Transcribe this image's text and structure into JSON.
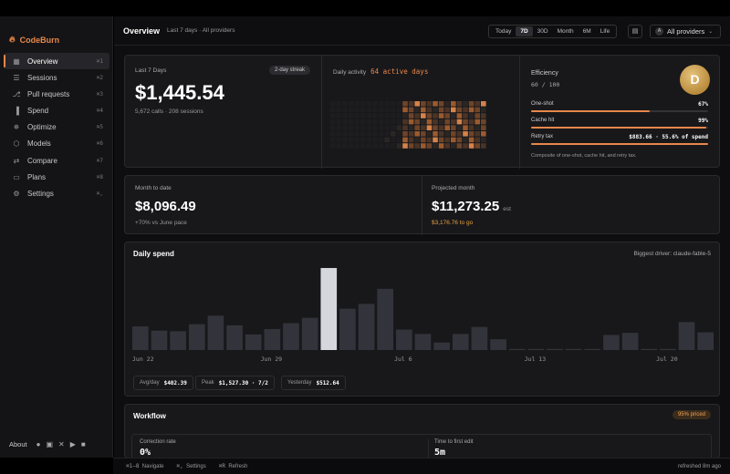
{
  "app": {
    "name": "CodeBurn"
  },
  "sidebar": {
    "items": [
      {
        "label": "Overview",
        "key": "⌘1",
        "icon": "grid-icon",
        "glyph": "▦"
      },
      {
        "label": "Sessions",
        "key": "⌘2",
        "icon": "stack-icon",
        "glyph": "☰"
      },
      {
        "label": "Pull requests",
        "key": "⌘3",
        "icon": "git-pull-request-icon",
        "glyph": "⎇"
      },
      {
        "label": "Spend",
        "key": "⌘4",
        "icon": "bar-chart-icon",
        "glyph": "▐"
      },
      {
        "label": "Optimize",
        "key": "⌘5",
        "icon": "lightbulb-icon",
        "glyph": "✵"
      },
      {
        "label": "Models",
        "key": "⌘6",
        "icon": "cube-icon",
        "glyph": "⬡"
      },
      {
        "label": "Compare",
        "key": "⌘7",
        "icon": "swap-icon",
        "glyph": "⇄"
      },
      {
        "label": "Plans",
        "key": "⌘8",
        "icon": "card-icon",
        "glyph": "▭"
      },
      {
        "label": "Settings",
        "key": "⌘,",
        "icon": "gear-icon",
        "glyph": "⚙"
      }
    ],
    "footer_label": "About"
  },
  "header": {
    "title": "Overview",
    "subtitle": "Last 7 days · All providers",
    "ranges": [
      "Today",
      "7D",
      "30D",
      "Month",
      "6M",
      "Life"
    ],
    "selected_range": "7D",
    "provider_label": "All providers",
    "provider_badge": "A"
  },
  "summary": {
    "label": "Last 7 Days",
    "streak": "2-day streak",
    "amount": "$1,445.54",
    "detail": "5,672 calls · 208 sessions"
  },
  "activity": {
    "label": "Daily activity",
    "highlight": "64 active days"
  },
  "efficiency": {
    "label": "Efficiency",
    "score": "60 / 100",
    "grade": "D",
    "rows": [
      {
        "label": "One-shot",
        "value": "67%",
        "fill": 0.67
      },
      {
        "label": "Cache hit",
        "value": "99%",
        "fill": 0.99
      },
      {
        "label": "Retry tax",
        "value": "$883.66 · 55.6% of spend",
        "fill": 1.0
      }
    ],
    "note": "Composite of one-shot, cache hit, and retry tax."
  },
  "month_to_date": {
    "label": "Month to date",
    "amount": "$8,096.49",
    "detail": "+70% vs June pace"
  },
  "projected": {
    "label": "Projected month",
    "amount": "$11,273.25",
    "suffix": "est",
    "detail": "$3,176.76 to go"
  },
  "daily_spend": {
    "title": "Daily spend",
    "driver": "Biggest driver: claude-fable-5",
    "stats": [
      {
        "label": "Avg/day",
        "value": "$402.39"
      },
      {
        "label": "Peak",
        "value": "$1,527.30 · 7/2"
      },
      {
        "label": "Yesterday",
        "value": "$512.64"
      }
    ]
  },
  "chart_data": {
    "type": "bar",
    "x_tick_labels": [
      "Jun 22",
      "Jun 29",
      "Jul 6",
      "Jul 13",
      "Jul 20"
    ],
    "x_tick_indices": [
      0,
      7,
      14,
      21,
      28
    ],
    "values": [
      440,
      360,
      350,
      480,
      640,
      460,
      290,
      390,
      500,
      600,
      1527,
      770,
      860,
      1140,
      380,
      300,
      140,
      300,
      430,
      200,
      20,
      20,
      20,
      20,
      20,
      280,
      320,
      20,
      20,
      520,
      330
    ],
    "highlight_index": 10,
    "ylim": [
      0,
      1527.3
    ],
    "colors": {
      "bar": "#33343b",
      "highlight": "#d6d7dc"
    }
  },
  "workflow": {
    "title": "Workflow",
    "badge": "95% priced",
    "metrics": [
      {
        "label": "Correction rate",
        "value": "0%"
      },
      {
        "label": "Time to first edit",
        "value": "5m"
      }
    ]
  },
  "statusbar": {
    "nav_keys": "⌘1–8",
    "nav_label": "Navigate",
    "settings_keys": "⌘,",
    "settings_label": "Settings",
    "refresh_keys": "⌘R",
    "refresh_label": "Refresh",
    "refreshed": "refreshed 8m ago"
  },
  "colors": {
    "accent": "#e8874a",
    "background": "#0e0e10",
    "card": "#18181b"
  }
}
